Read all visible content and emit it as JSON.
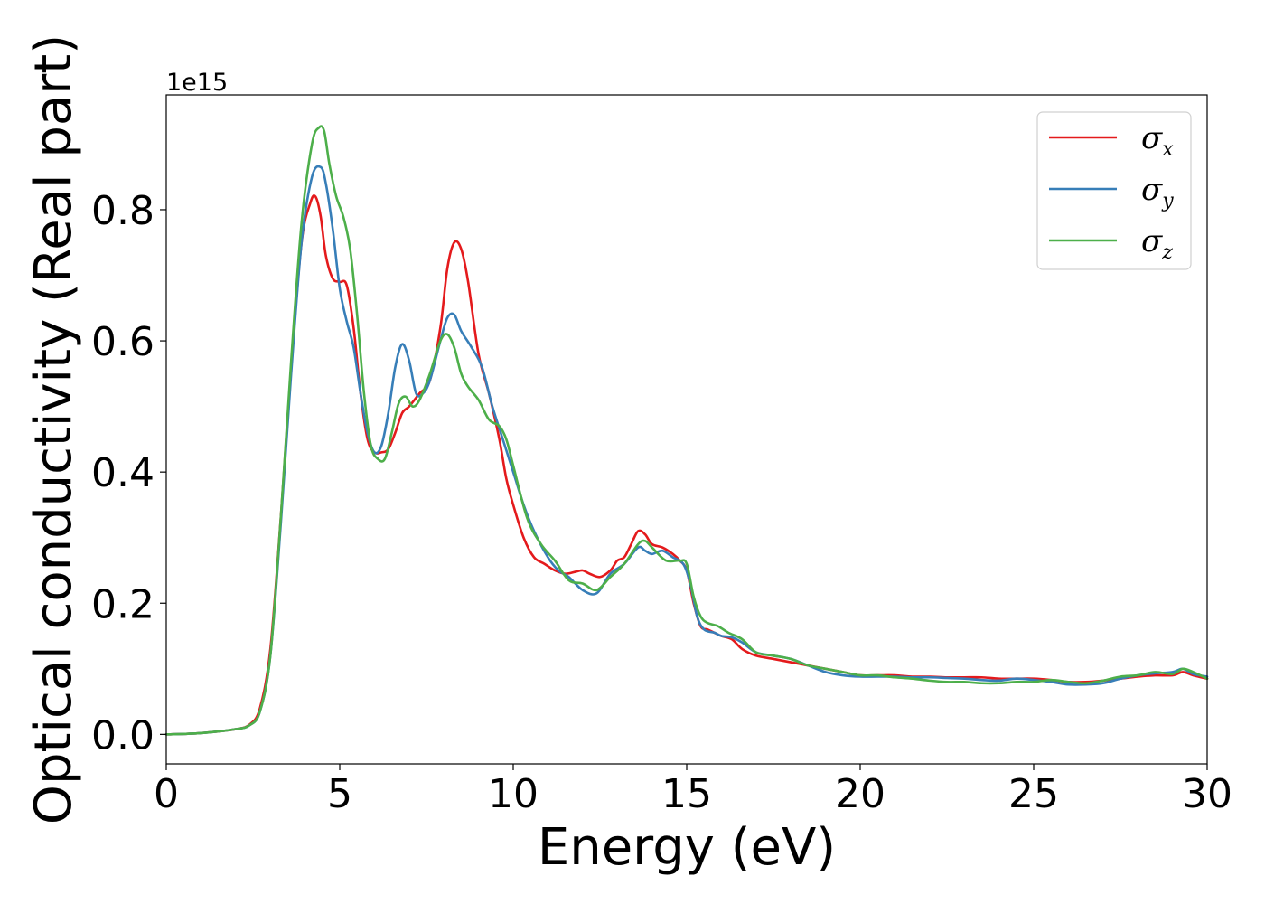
{
  "chart_data": {
    "type": "line",
    "title": "",
    "xlabel": "Energy (eV)",
    "ylabel": "Optical conductivity (Real part)",
    "y_offset_label": "1e15",
    "xlim": [
      0,
      30
    ],
    "ylim": [
      -0.045,
      0.975
    ],
    "x_ticks": [
      0,
      5,
      10,
      15,
      20,
      25,
      30
    ],
    "x_tick_labels": [
      "0",
      "5",
      "10",
      "15",
      "20",
      "25",
      "30"
    ],
    "y_ticks": [
      0.0,
      0.2,
      0.4,
      0.6,
      0.8
    ],
    "y_tick_labels": [
      "0.0",
      "0.2",
      "0.4",
      "0.6",
      "0.8"
    ],
    "grid": false,
    "legend_position": "top-right",
    "series": [
      {
        "name": "σx",
        "legend_symbol": "σ",
        "legend_subscript": "x",
        "color": "#e41a1c",
        "x": [
          0,
          1,
          2,
          2.4,
          2.7,
          3.0,
          3.3,
          3.6,
          3.9,
          4.15,
          4.3,
          4.45,
          4.6,
          4.8,
          5.0,
          5.2,
          5.4,
          5.6,
          5.8,
          6.0,
          6.2,
          6.4,
          6.6,
          6.8,
          7.0,
          7.3,
          7.6,
          7.9,
          8.1,
          8.3,
          8.5,
          8.7,
          9.0,
          9.3,
          9.6,
          9.8,
          10.0,
          10.3,
          10.6,
          10.9,
          11.2,
          11.5,
          11.8,
          12.0,
          12.2,
          12.5,
          12.8,
          13.0,
          13.2,
          13.4,
          13.6,
          13.8,
          14.0,
          14.3,
          14.6,
          14.8,
          15.0,
          15.2,
          15.4,
          15.6,
          15.8,
          16.0,
          16.3,
          16.6,
          17.0,
          17.5,
          18.0,
          18.5,
          19.0,
          19.5,
          20.0,
          20.5,
          21.0,
          21.5,
          22.0,
          22.5,
          23.0,
          23.5,
          24.0,
          24.5,
          25.0,
          25.5,
          26.0,
          26.5,
          27.0,
          27.5,
          28.0,
          28.5,
          29.0,
          29.3,
          29.6,
          30.0
        ],
        "values": [
          0.0,
          0.002,
          0.008,
          0.015,
          0.04,
          0.13,
          0.33,
          0.56,
          0.75,
          0.81,
          0.82,
          0.79,
          0.73,
          0.695,
          0.69,
          0.685,
          0.62,
          0.52,
          0.45,
          0.43,
          0.43,
          0.435,
          0.46,
          0.49,
          0.5,
          0.52,
          0.54,
          0.62,
          0.71,
          0.75,
          0.74,
          0.69,
          0.58,
          0.52,
          0.45,
          0.39,
          0.35,
          0.3,
          0.27,
          0.26,
          0.25,
          0.245,
          0.248,
          0.25,
          0.245,
          0.24,
          0.25,
          0.265,
          0.27,
          0.29,
          0.31,
          0.305,
          0.29,
          0.285,
          0.275,
          0.265,
          0.25,
          0.2,
          0.165,
          0.16,
          0.155,
          0.15,
          0.145,
          0.13,
          0.12,
          0.115,
          0.11,
          0.105,
          0.1,
          0.095,
          0.09,
          0.09,
          0.09,
          0.088,
          0.088,
          0.087,
          0.087,
          0.087,
          0.085,
          0.085,
          0.085,
          0.083,
          0.08,
          0.08,
          0.082,
          0.085,
          0.088,
          0.09,
          0.09,
          0.095,
          0.09,
          0.085
        ]
      },
      {
        "name": "σy",
        "legend_symbol": "σ",
        "legend_subscript": "y",
        "color": "#377eb8",
        "x": [
          0,
          1,
          2,
          2.4,
          2.7,
          3.0,
          3.3,
          3.6,
          3.9,
          4.2,
          4.45,
          4.6,
          4.8,
          5.0,
          5.2,
          5.4,
          5.6,
          5.8,
          6.0,
          6.2,
          6.4,
          6.6,
          6.8,
          7.0,
          7.2,
          7.4,
          7.6,
          7.9,
          8.1,
          8.3,
          8.5,
          8.8,
          9.1,
          9.4,
          9.7,
          10.0,
          10.3,
          10.6,
          11.0,
          11.3,
          11.6,
          12.0,
          12.4,
          12.8,
          13.2,
          13.6,
          13.8,
          14.0,
          14.3,
          14.6,
          14.9,
          15.1,
          15.3,
          15.5,
          15.8,
          16.0,
          16.3,
          16.6,
          17.0,
          17.5,
          18.0,
          18.5,
          19.0,
          19.5,
          20.0,
          20.5,
          21.0,
          21.5,
          22.0,
          22.5,
          23.0,
          23.5,
          24.0,
          24.5,
          25.0,
          25.5,
          26.0,
          26.5,
          27.0,
          27.5,
          28.0,
          28.5,
          29.0,
          29.3,
          29.6,
          30.0
        ],
        "values": [
          0.0,
          0.002,
          0.008,
          0.014,
          0.035,
          0.12,
          0.32,
          0.55,
          0.75,
          0.85,
          0.865,
          0.84,
          0.77,
          0.68,
          0.63,
          0.59,
          0.52,
          0.46,
          0.43,
          0.44,
          0.49,
          0.56,
          0.595,
          0.57,
          0.52,
          0.52,
          0.54,
          0.6,
          0.635,
          0.64,
          0.615,
          0.59,
          0.56,
          0.5,
          0.45,
          0.4,
          0.35,
          0.31,
          0.27,
          0.25,
          0.24,
          0.22,
          0.215,
          0.245,
          0.26,
          0.285,
          0.28,
          0.275,
          0.28,
          0.27,
          0.26,
          0.23,
          0.18,
          0.16,
          0.155,
          0.15,
          0.148,
          0.14,
          0.125,
          0.12,
          0.115,
          0.105,
          0.095,
          0.09,
          0.088,
          0.088,
          0.088,
          0.087,
          0.087,
          0.086,
          0.085,
          0.083,
          0.082,
          0.085,
          0.083,
          0.08,
          0.076,
          0.076,
          0.078,
          0.085,
          0.09,
          0.093,
          0.095,
          0.1,
          0.092,
          0.088
        ]
      },
      {
        "name": "σz",
        "legend_symbol": "σ",
        "legend_subscript": "z",
        "color": "#4daf4a",
        "x": [
          0,
          1,
          2,
          2.4,
          2.7,
          3.0,
          3.3,
          3.6,
          3.9,
          4.2,
          4.4,
          4.55,
          4.7,
          4.9,
          5.1,
          5.3,
          5.5,
          5.7,
          5.9,
          6.1,
          6.3,
          6.5,
          6.7,
          6.9,
          7.1,
          7.3,
          7.6,
          7.9,
          8.1,
          8.3,
          8.5,
          8.7,
          9.0,
          9.3,
          9.6,
          9.8,
          10.0,
          10.4,
          10.8,
          11.2,
          11.6,
          12.0,
          12.4,
          12.8,
          13.2,
          13.6,
          13.8,
          14.0,
          14.4,
          14.8,
          15.0,
          15.2,
          15.4,
          15.6,
          15.9,
          16.2,
          16.6,
          17.0,
          17.5,
          18.0,
          18.5,
          19.0,
          19.5,
          20.0,
          20.5,
          21.0,
          21.5,
          22.0,
          22.5,
          23.0,
          23.5,
          24.0,
          24.5,
          25.0,
          25.5,
          26.0,
          26.5,
          27.0,
          27.5,
          28.0,
          28.5,
          29.0,
          29.3,
          29.6,
          30.0
        ],
        "values": [
          0.0,
          0.002,
          0.008,
          0.014,
          0.035,
          0.12,
          0.33,
          0.57,
          0.78,
          0.9,
          0.925,
          0.92,
          0.87,
          0.82,
          0.79,
          0.74,
          0.64,
          0.52,
          0.44,
          0.42,
          0.42,
          0.46,
          0.505,
          0.515,
          0.5,
          0.51,
          0.55,
          0.6,
          0.61,
          0.59,
          0.55,
          0.53,
          0.51,
          0.48,
          0.47,
          0.45,
          0.41,
          0.33,
          0.29,
          0.265,
          0.235,
          0.23,
          0.22,
          0.24,
          0.26,
          0.29,
          0.295,
          0.285,
          0.265,
          0.265,
          0.26,
          0.21,
          0.18,
          0.17,
          0.165,
          0.155,
          0.145,
          0.125,
          0.12,
          0.115,
          0.105,
          0.1,
          0.095,
          0.09,
          0.09,
          0.087,
          0.085,
          0.082,
          0.08,
          0.08,
          0.078,
          0.078,
          0.08,
          0.08,
          0.083,
          0.08,
          0.078,
          0.082,
          0.088,
          0.09,
          0.095,
          0.092,
          0.1,
          0.095,
          0.085
        ]
      }
    ]
  }
}
